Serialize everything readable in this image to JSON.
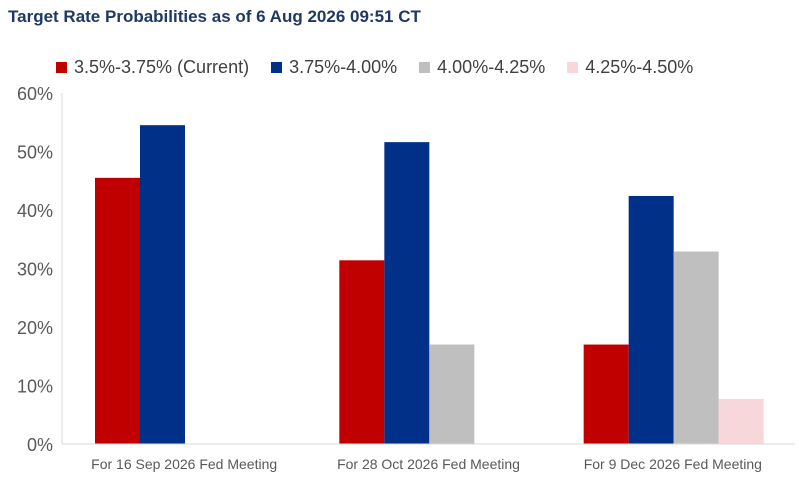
{
  "chart_data": {
    "type": "bar",
    "title": "Target Rate Probabilities as of 6 Aug 2026 09:51 CT",
    "categories": [
      "For 16 Sep 2026 Fed Meeting",
      "For 28 Oct 2026 Fed Meeting",
      "For 9 Dec 2026 Fed Meeting"
    ],
    "series": [
      {
        "name": "3.5%-3.75% (Current)",
        "color": "#c00000",
        "values": [
          45.5,
          31.4,
          17.0
        ]
      },
      {
        "name": "3.75%-4.00%",
        "color": "#003087",
        "values": [
          54.5,
          51.6,
          42.4
        ]
      },
      {
        "name": "4.00%-4.25%",
        "color": "#bfbfbf",
        "values": [
          0,
          17.0,
          32.9
        ]
      },
      {
        "name": "4.25%-4.50%",
        "color": "#f7d7da",
        "values": [
          0,
          0,
          7.7
        ]
      }
    ],
    "ylim": [
      0,
      60
    ],
    "yticks": [
      "0%",
      "10%",
      "20%",
      "30%",
      "40%",
      "50%",
      "60%"
    ],
    "grid": false,
    "legend_position": "top"
  }
}
